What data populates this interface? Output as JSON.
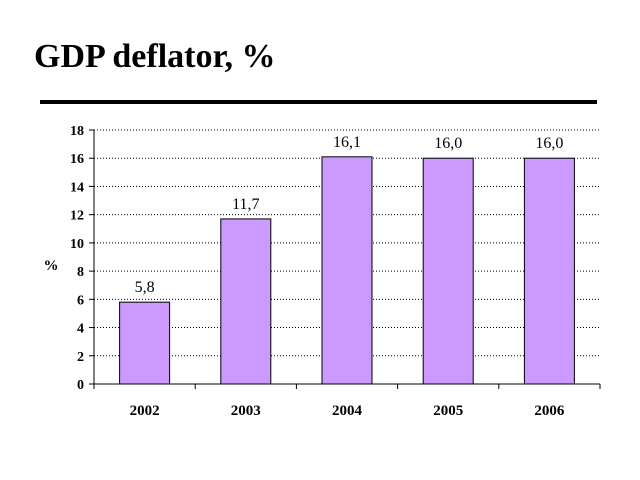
{
  "title": "GDP deflator, %",
  "chart_data": {
    "type": "bar",
    "title": "GDP deflator, %",
    "xlabel": "",
    "ylabel": "%",
    "categories": [
      "2002",
      "2003",
      "2004",
      "2005",
      "2006"
    ],
    "values": [
      5.8,
      11.7,
      16.1,
      16.0,
      16.0
    ],
    "data_labels": [
      "5,8",
      "11,7",
      "16,1",
      "16,0",
      "16,0"
    ],
    "ylim": [
      0,
      18
    ],
    "yticks": [
      "0",
      "2",
      "4",
      "6",
      "8",
      "10",
      "12",
      "14",
      "16",
      "18"
    ],
    "grid": "horizontal dotted",
    "legend": "none",
    "bar_color": "#cc99ff"
  }
}
